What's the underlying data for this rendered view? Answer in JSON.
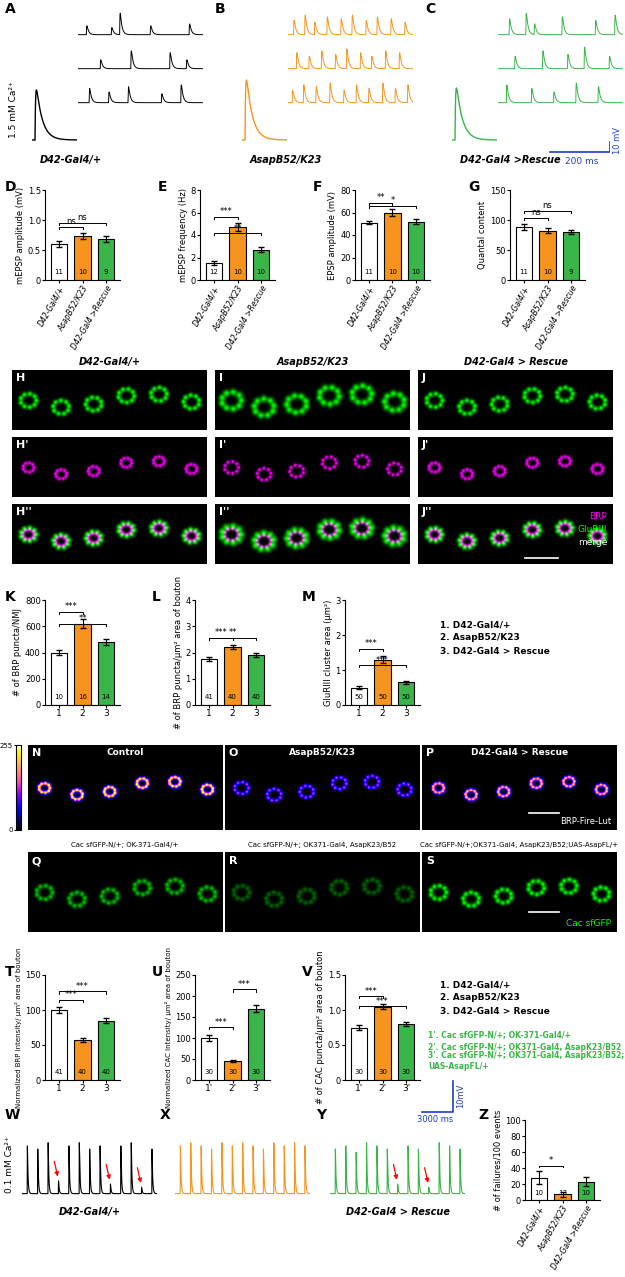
{
  "chart_data": [
    {
      "type": "bar",
      "panel": "D",
      "ylabel": "mEPSP amplitude (mV)",
      "categories": [
        "D42-Gal4/+",
        "AsapB52/K23",
        "D42-Gal4 >Rescue"
      ],
      "values": [
        0.6,
        0.73,
        0.68
      ],
      "errors": [
        0.05,
        0.05,
        0.05
      ],
      "n": [
        11,
        10,
        9
      ],
      "colors": [
        "#FFFFFF",
        "#F7941D",
        "#39B54A"
      ],
      "ylim": [
        0,
        1.5
      ],
      "yticks": [
        0,
        0.5,
        1.0,
        1.5
      ],
      "significance": [
        {
          "pair": [
            0,
            1
          ],
          "label": "ns"
        },
        {
          "pair": [
            0,
            2
          ],
          "label": "ns"
        }
      ]
    },
    {
      "type": "bar",
      "panel": "E",
      "ylabel": "mEPSP frequency (Hz)",
      "categories": [
        "D42-Gal4/+",
        "AsapB52/K23",
        "D42-Gal4 >Rescue"
      ],
      "values": [
        1.5,
        4.7,
        2.7
      ],
      "errors": [
        0.2,
        0.35,
        0.25
      ],
      "n": [
        12,
        10,
        10
      ],
      "colors": [
        "#FFFFFF",
        "#F7941D",
        "#39B54A"
      ],
      "ylim": [
        0,
        8
      ],
      "yticks": [
        0,
        2,
        4,
        6,
        8
      ],
      "significance": [
        {
          "pair": [
            0,
            1
          ],
          "label": "***"
        },
        {
          "pair": [
            0,
            2
          ],
          "label": "**"
        }
      ]
    },
    {
      "type": "bar",
      "panel": "F",
      "ylabel": "EPSP amplitude (mV)",
      "categories": [
        "D42-Gal4/+",
        "AsapB52/K23",
        "D42-Gal4 >Rescue"
      ],
      "values": [
        51,
        60,
        52
      ],
      "errors": [
        1.5,
        3,
        2
      ],
      "n": [
        11,
        10,
        10
      ],
      "colors": [
        "#FFFFFF",
        "#F7941D",
        "#39B54A"
      ],
      "ylim": [
        0,
        80
      ],
      "yticks": [
        0,
        20,
        40,
        60,
        80
      ],
      "significance": [
        {
          "pair": [
            0,
            1
          ],
          "label": "**"
        },
        {
          "pair": [
            0,
            2
          ],
          "label": "*"
        }
      ]
    },
    {
      "type": "bar",
      "panel": "G",
      "ylabel": "Quantal content",
      "categories": [
        "D42-Gal4/+",
        "AsapB52/K23",
        "D42-Gal4 >Rescue"
      ],
      "values": [
        88,
        82,
        80
      ],
      "errors": [
        5,
        4,
        4
      ],
      "n": [
        11,
        10,
        9
      ],
      "colors": [
        "#FFFFFF",
        "#F7941D",
        "#39B54A"
      ],
      "ylim": [
        0,
        150
      ],
      "yticks": [
        0,
        50,
        100,
        150
      ],
      "significance": [
        {
          "pair": [
            0,
            1
          ],
          "label": "ns"
        },
        {
          "pair": [
            0,
            2
          ],
          "label": "ns"
        }
      ]
    },
    {
      "type": "bar",
      "panel": "K",
      "ylabel": "# of BRP puncta/NMJ",
      "categories": [
        "1",
        "2",
        "3"
      ],
      "values": [
        400,
        620,
        480
      ],
      "errors": [
        20,
        35,
        20
      ],
      "n": [
        10,
        16,
        14
      ],
      "colors": [
        "#FFFFFF",
        "#F7941D",
        "#39B54A"
      ],
      "ylim": [
        0,
        800
      ],
      "yticks": [
        0,
        200,
        400,
        600,
        800
      ],
      "significance": [
        {
          "pair": [
            0,
            1
          ],
          "label": "***"
        },
        {
          "pair": [
            0,
            2
          ],
          "label": "**"
        }
      ]
    },
    {
      "type": "bar",
      "panel": "L",
      "ylabel": "# of BRP puncta/μm² area of bouton",
      "categories": [
        "1",
        "2",
        "3"
      ],
      "values": [
        1.75,
        2.2,
        1.9
      ],
      "errors": [
        0.07,
        0.08,
        0.07
      ],
      "n": [
        41,
        40,
        40
      ],
      "colors": [
        "#FFFFFF",
        "#F7941D",
        "#39B54A"
      ],
      "ylim": [
        0,
        4
      ],
      "yticks": [
        0,
        1,
        2,
        3,
        4
      ],
      "significance": [
        {
          "pair": [
            0,
            1
          ],
          "label": "***"
        },
        {
          "pair": [
            0,
            2
          ],
          "label": "**"
        }
      ]
    },
    {
      "type": "bar",
      "panel": "M",
      "ylabel": "GluRIII cluster area (μm²)",
      "categories": [
        "1",
        "2",
        "3"
      ],
      "values": [
        0.5,
        1.3,
        0.65
      ],
      "errors": [
        0.04,
        0.09,
        0.04
      ],
      "n": [
        50,
        50,
        50
      ],
      "colors": [
        "#FFFFFF",
        "#F7941D",
        "#39B54A"
      ],
      "ylim": [
        0,
        3
      ],
      "yticks": [
        0,
        1,
        2,
        3
      ],
      "significance": [
        {
          "pair": [
            0,
            1
          ],
          "label": "***"
        },
        {
          "pair": [
            0,
            2
          ],
          "label": "***"
        }
      ]
    },
    {
      "type": "bar",
      "panel": "T",
      "ylabel": "Normalized BRP Intensity/ μm² area of bouton",
      "categories": [
        "1",
        "2",
        "3"
      ],
      "values": [
        100,
        57,
        85
      ],
      "errors": [
        4,
        3,
        3
      ],
      "n": [
        41,
        40,
        40
      ],
      "colors": [
        "#FFFFFF",
        "#F7941D",
        "#39B54A"
      ],
      "ylim": [
        0,
        150
      ],
      "yticks": [
        0,
        50,
        100,
        150
      ],
      "significance": [
        {
          "pair": [
            0,
            1
          ],
          "label": "***"
        },
        {
          "pair": [
            0,
            2
          ],
          "label": "***"
        }
      ]
    },
    {
      "type": "bar",
      "panel": "U",
      "ylabel": "Normalized CAC Intensity/ μm² area of bouton",
      "categories": [
        "1'",
        "2'",
        "3'"
      ],
      "values": [
        100,
        45,
        170
      ],
      "errors": [
        8,
        3,
        8
      ],
      "n": [
        30,
        30,
        30
      ],
      "colors": [
        "#FFFFFF",
        "#F7941D",
        "#39B54A"
      ],
      "ylim": [
        0,
        250
      ],
      "yticks": [
        0,
        50,
        100,
        150,
        200,
        250
      ],
      "significance": [
        {
          "pair": [
            0,
            1
          ],
          "label": "***"
        },
        {
          "pair": [
            1,
            2
          ],
          "label": "***"
        }
      ]
    },
    {
      "type": "bar",
      "panel": "V",
      "ylabel": "# of CAC puncta/μm² area of bouton",
      "categories": [
        "1'",
        "2'",
        "3'"
      ],
      "values": [
        0.75,
        1.05,
        0.8
      ],
      "errors": [
        0.03,
        0.04,
        0.03
      ],
      "n": [
        30,
        30,
        30
      ],
      "colors": [
        "#FFFFFF",
        "#F7941D",
        "#39B54A"
      ],
      "ylim": [
        0,
        1.5
      ],
      "yticks": [
        0,
        0.5,
        1.0,
        1.5
      ],
      "significance": [
        {
          "pair": [
            0,
            1
          ],
          "label": "***"
        },
        {
          "pair": [
            0,
            2
          ],
          "label": "***"
        }
      ]
    },
    {
      "type": "bar",
      "panel": "Z",
      "ylabel": "# of failures/100 events",
      "categories": [
        "D42-Gal4/+",
        "AsapB52/K23",
        "D42-Gal4 >Rescue"
      ],
      "values": [
        28,
        7,
        23
      ],
      "errors": [
        8,
        3,
        6
      ],
      "n": [
        10,
        13,
        10
      ],
      "colors": [
        "#FFFFFF",
        "#F7941D",
        "#39B54A"
      ],
      "ylim": [
        0,
        100
      ],
      "yticks": [
        0,
        20,
        40,
        60,
        80,
        100
      ],
      "significance": [
        {
          "pair": [
            0,
            1
          ],
          "label": "*"
        }
      ]
    }
  ],
  "traces": {
    "evoked": {
      "stimulus": "1.5 mM Ca²⁺",
      "epsp_xlim": [
        0,
        150
      ],
      "epsp_ylim": [
        -5,
        65
      ],
      "minis_xlim": [
        0,
        450
      ],
      "minis_ylim": [
        -0.3,
        1.5
      ],
      "panels": [
        {
          "panel": "A",
          "label": "D42-Gal4/+",
          "color": "#000000",
          "epsp": {
            "time": 10,
            "amplitude": 50
          },
          "minis": [
            [
              [
                30,
                0.5
              ],
              [
                120,
                0.4
              ],
              [
                150,
                1.2
              ],
              [
                260,
                0.5
              ],
              [
                400,
                0.6
              ]
            ],
            [
              [
                80,
                0.5
              ],
              [
                190,
                1.0
              ],
              [
                330,
                0.9
              ],
              [
                390,
                0.5
              ]
            ],
            [
              [
                40,
                0.8
              ],
              [
                110,
                0.6
              ],
              [
                180,
                0.9
              ],
              [
                300,
                0.5
              ],
              [
                370,
                1.0
              ]
            ]
          ]
        },
        {
          "panel": "B",
          "label": "AsapB52/K23",
          "color": "#F7941D",
          "epsp": {
            "time": 10,
            "amplitude": 60
          },
          "minis": [
            [
              [
                20,
                0.8
              ],
              [
                60,
                1.1
              ],
              [
                95,
                0.7
              ],
              [
                140,
                1.0
              ],
              [
                190,
                0.9
              ],
              [
                230,
                1.1
              ],
              [
                280,
                0.8
              ],
              [
                320,
                1.0
              ],
              [
                370,
                0.9
              ],
              [
                420,
                0.7
              ]
            ],
            [
              [
                30,
                0.9
              ],
              [
                75,
                0.7
              ],
              [
                120,
                1.0
              ],
              [
                170,
                0.8
              ],
              [
                210,
                1.1
              ],
              [
                260,
                0.9
              ],
              [
                300,
                0.7
              ],
              [
                350,
                1.0
              ],
              [
                400,
                0.9
              ]
            ],
            [
              [
                15,
                0.7
              ],
              [
                55,
                1.0
              ],
              [
                100,
                0.9
              ],
              [
                150,
                1.1
              ],
              [
                200,
                0.7
              ],
              [
                245,
                1.0
              ],
              [
                290,
                0.8
              ],
              [
                340,
                1.1
              ],
              [
                385,
                0.8
              ],
              [
                430,
                1.0
              ]
            ]
          ]
        },
        {
          "panel": "C",
          "label": "D42-Gal4 >Rescue",
          "color": "#39B54A",
          "epsp": {
            "time": 10,
            "amplitude": 52
          },
          "minis": [
            [
              [
                40,
                0.9
              ],
              [
                100,
                1.2
              ],
              [
                130,
                0.6
              ],
              [
                230,
                1.0
              ],
              [
                350,
                0.8
              ],
              [
                420,
                1.1
              ]
            ],
            [
              [
                60,
                0.7
              ],
              [
                160,
                1.0
              ],
              [
                250,
                0.8
              ],
              [
                310,
                1.2
              ],
              [
                400,
                0.7
              ]
            ],
            [
              [
                30,
                1.0
              ],
              [
                120,
                0.8
              ],
              [
                200,
                0.6
              ],
              [
                280,
                1.1
              ],
              [
                360,
                0.9
              ]
            ]
          ]
        }
      ],
      "scalebar": {
        "mV": 10,
        "ms": 200,
        "mV_label": "10 mV",
        "ms_label": "200 ms"
      }
    },
    "trains": {
      "stimulus": "0.1 mM Ca²⁺",
      "xlim": [
        0,
        13000
      ],
      "ylim": [
        -2,
        20
      ],
      "arrow_color": "#FF0000",
      "panels": [
        {
          "panel": "W",
          "label": "D42-Gal4/+",
          "color": "#000000",
          "times": [
            500,
            1500,
            2500,
            3500,
            4500,
            5500,
            6500,
            7500,
            8500,
            9500,
            10500,
            11500,
            12500
          ],
          "amplitudes": [
            15,
            14,
            16,
            4,
            15,
            16,
            14,
            15,
            3,
            15,
            16,
            2,
            14
          ],
          "failures": [
            3,
            8,
            11
          ]
        },
        {
          "panel": "X",
          "color": "#F7941D",
          "times": [
            500,
            1500,
            2500,
            3500,
            4500,
            5500,
            6500,
            7500,
            8500,
            9500,
            10500,
            11500,
            12500
          ],
          "amplitudes": [
            15,
            16,
            15,
            14,
            16,
            15,
            16,
            15,
            14,
            16,
            15,
            16,
            15
          ],
          "failures": []
        },
        {
          "panel": "Y",
          "label": "D42-Gal4 > Rescue",
          "color": "#39B54A",
          "times": [
            500,
            1500,
            2500,
            3500,
            4500,
            5500,
            6500,
            7500,
            8500,
            9500,
            10500,
            11500,
            12500
          ],
          "amplitudes": [
            14,
            15,
            13,
            16,
            15,
            14,
            3,
            15,
            14,
            2,
            16,
            15,
            14
          ],
          "failures": [
            6,
            9
          ]
        }
      ],
      "scalebar": {
        "mV": 10,
        "ms": 3000,
        "mV_label": "10mV",
        "ms_label": "3000 ms"
      }
    }
  },
  "images": {
    "confocal": {
      "columns": [
        {
          "panels": [
            "H",
            "H'",
            "H''"
          ],
          "label": "D42-Gal4/+"
        },
        {
          "panels": [
            "I",
            "I'",
            "I''"
          ],
          "label": "AsapB52/K23"
        },
        {
          "panels": [
            "J",
            "J'",
            "J''"
          ],
          "label": "D42-Gal4 > Rescue"
        }
      ],
      "channels": [
        {
          "name": "GluRIII",
          "color": "#00FF00"
        },
        {
          "name": "BRP",
          "color": "#FF00FF"
        }
      ],
      "merge_label": "merge"
    },
    "fire": {
      "panels": [
        {
          "panel": "N",
          "label": "Control"
        },
        {
          "panel": "O",
          "label": "AsapB52/K23"
        },
        {
          "panel": "P",
          "label": "D42-Gal4 > Rescue"
        }
      ],
      "lut_label": "BRP-Fire-Lut",
      "colorbar": {
        "range": [
          0,
          255
        ],
        "ticks": [
          0,
          255
        ]
      }
    },
    "cac": {
      "panels": [
        {
          "panel": "Q",
          "label": "Cac sfGFP-N/+; OK-371-Gal4/+"
        },
        {
          "panel": "R",
          "label": "Cac sfGFP-N/+; OK371-Gal4, AsapK23/B52"
        },
        {
          "panel": "S",
          "label": "Cac sfGFP-N/+;OK371-Gal4, AsapK23/B52;UAS-AsapFL/+"
        }
      ],
      "channel_label": "Cac sfGFP",
      "color": "#00FF00"
    }
  },
  "numbered_legends": [
    {
      "color": "#000000",
      "items": [
        "1. D42-Gal4/+",
        "2. AsapB52/K23",
        "3. D42-Gal4 > Rescue"
      ]
    },
    {
      "color": "#000000",
      "items": [
        "1. D42-Gal4/+",
        "2. AsapB52/K23",
        "3. D42-Gal4 > Rescue"
      ]
    },
    {
      "color": "#39B54A",
      "items": [
        "1'. Cac sfGFP-N/+; OK-371-Gal4/+",
        "2'. Cac sfGFP-N/+; OK371-Gal4, AsapK23/B52",
        "3'. Cac sfGFP-N/+; OK371-Gal4, AsapK23/B52; UAS-AsapFL/+"
      ]
    }
  ]
}
